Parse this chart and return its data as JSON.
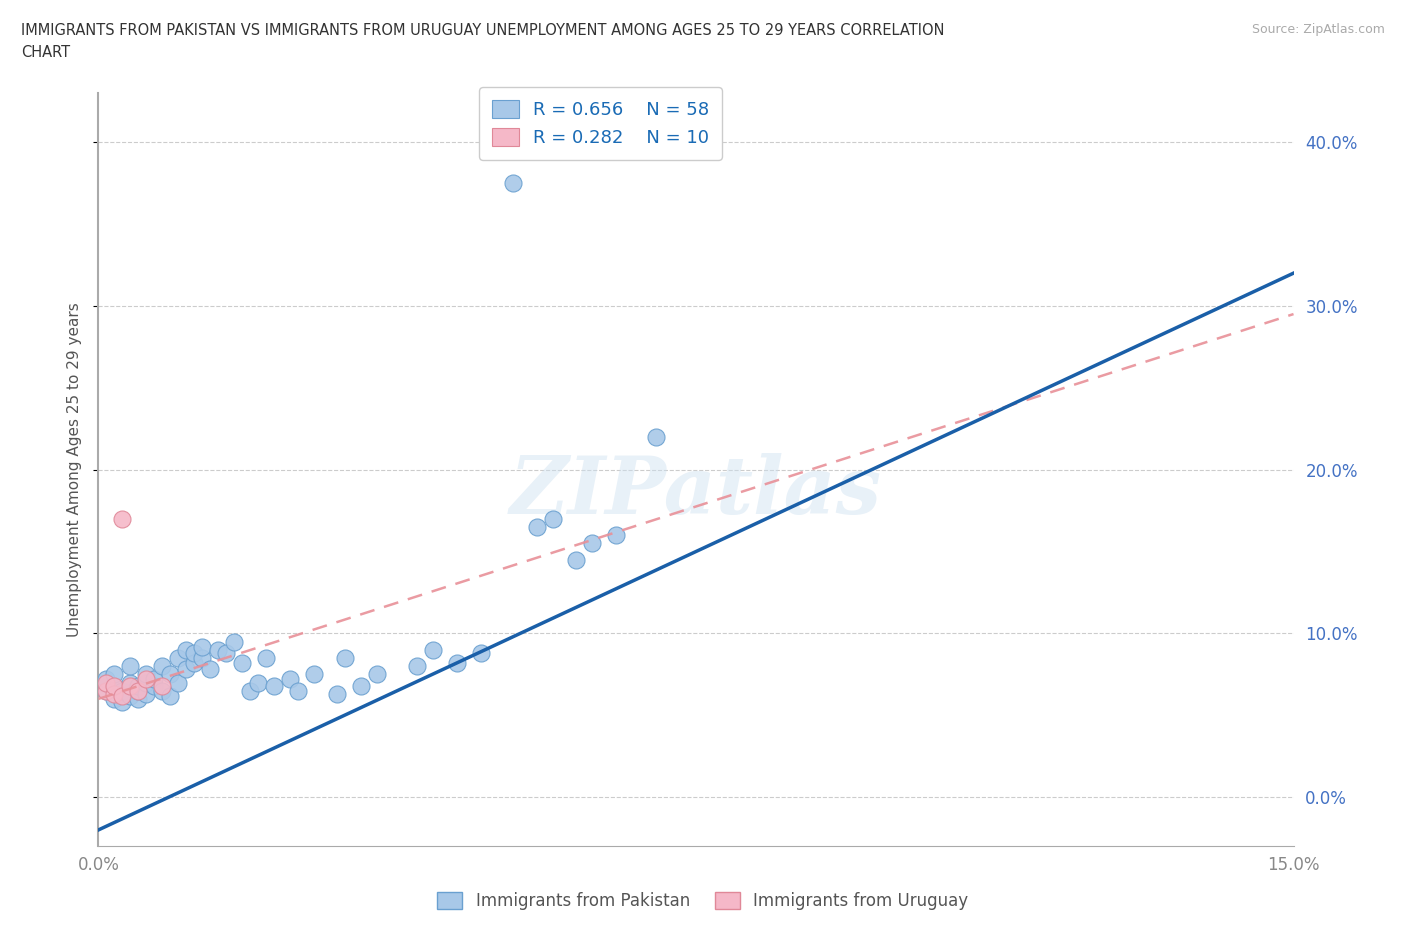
{
  "title_line1": "IMMIGRANTS FROM PAKISTAN VS IMMIGRANTS FROM URUGUAY UNEMPLOYMENT AMONG AGES 25 TO 29 YEARS CORRELATION",
  "title_line2": "CHART",
  "source_text": "Source: ZipAtlas.com",
  "ylabel": "Unemployment Among Ages 25 to 29 years",
  "xlim": [
    0.0,
    0.15
  ],
  "ylim": [
    -0.03,
    0.43
  ],
  "yticks": [
    0.0,
    0.1,
    0.2,
    0.3,
    0.4
  ],
  "ytick_labels": [
    "0.0%",
    "10.0%",
    "20.0%",
    "30.0%",
    "40.0%"
  ],
  "xtick_positions": [
    0.0,
    0.03,
    0.06,
    0.09,
    0.12,
    0.15
  ],
  "xtick_labels": [
    "0.0%",
    "",
    "",
    "",
    "",
    "15.0%"
  ],
  "pakistan_R": 0.656,
  "pakistan_N": 58,
  "uruguay_R": 0.282,
  "uruguay_N": 10,
  "pakistan_color": "#a8c8e8",
  "pakistan_edge": "#6aa0d0",
  "uruguay_color": "#f5b8c8",
  "uruguay_edge": "#e08898",
  "pakistan_line_color": "#1a5fa8",
  "uruguay_line_color": "#e89098",
  "watermark": "ZIPatlas",
  "background_color": "#ffffff",
  "pakistan_x": [
    0.001,
    0.001,
    0.001,
    0.002,
    0.002,
    0.002,
    0.003,
    0.003,
    0.004,
    0.004,
    0.004,
    0.005,
    0.005,
    0.005,
    0.006,
    0.006,
    0.006,
    0.007,
    0.007,
    0.008,
    0.008,
    0.009,
    0.009,
    0.01,
    0.01,
    0.011,
    0.011,
    0.012,
    0.012,
    0.013,
    0.013,
    0.014,
    0.015,
    0.016,
    0.017,
    0.018,
    0.019,
    0.02,
    0.021,
    0.022,
    0.024,
    0.025,
    0.027,
    0.03,
    0.031,
    0.033,
    0.035,
    0.04,
    0.042,
    0.045,
    0.048,
    0.052,
    0.055,
    0.057,
    0.06,
    0.062,
    0.065,
    0.07
  ],
  "pakistan_y": [
    0.065,
    0.07,
    0.072,
    0.06,
    0.068,
    0.075,
    0.058,
    0.065,
    0.062,
    0.07,
    0.08,
    0.06,
    0.065,
    0.068,
    0.063,
    0.07,
    0.075,
    0.068,
    0.072,
    0.065,
    0.08,
    0.062,
    0.075,
    0.07,
    0.085,
    0.078,
    0.09,
    0.082,
    0.088,
    0.085,
    0.092,
    0.078,
    0.09,
    0.088,
    0.095,
    0.082,
    0.065,
    0.07,
    0.085,
    0.068,
    0.072,
    0.065,
    0.075,
    0.063,
    0.085,
    0.068,
    0.075,
    0.08,
    0.09,
    0.082,
    0.088,
    0.375,
    0.165,
    0.17,
    0.145,
    0.155,
    0.16,
    0.22
  ],
  "uruguay_x": [
    0.001,
    0.001,
    0.002,
    0.002,
    0.003,
    0.003,
    0.004,
    0.005,
    0.006,
    0.008
  ],
  "uruguay_y": [
    0.065,
    0.07,
    0.063,
    0.068,
    0.062,
    0.17,
    0.068,
    0.065,
    0.072,
    0.068
  ],
  "pak_line_x0": 0.0,
  "pak_line_y0": -0.02,
  "pak_line_x1": 0.15,
  "pak_line_y1": 0.32,
  "uru_line_x0": 0.0,
  "uru_line_y0": 0.06,
  "uru_line_x1": 0.15,
  "uru_line_y1": 0.295
}
